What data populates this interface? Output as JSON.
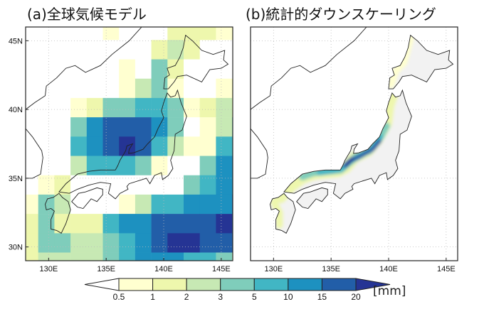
{
  "panels": [
    {
      "title": "(a)全球気候モデル"
    },
    {
      "title": "(b)統計的ダウンスケーリング"
    }
  ],
  "lon_ticks": [
    "130E",
    "135E",
    "140E",
    "145E"
  ],
  "lat_ticks": [
    "45N",
    "40N",
    "35N",
    "30N"
  ],
  "colorbar": {
    "boundaries": [
      "0.5",
      "1",
      "2",
      "3",
      "5",
      "10",
      "15",
      "20"
    ],
    "unit": "[mm]",
    "colors": [
      "#ffffff",
      "#ffffd0",
      "#eef7ad",
      "#c7e9b4",
      "#7fcdbb",
      "#41b6c4",
      "#1d91c0",
      "#225ea8",
      "#253494"
    ]
  },
  "chart_data": {
    "type": "heatmap",
    "xlim": [
      128,
      146
    ],
    "ylim": [
      29,
      46
    ],
    "grid_note_levels": "category index 0=<0.5, 1=0.5-1, 2=1-2, 3=2-3, 4=3-5, 5=5-10, 6=10-15, 7=15-20, 8=>20",
    "gcm_grid": [
      [
        0,
        0,
        0,
        0,
        0,
        1,
        0,
        0,
        0,
        2,
        2,
        2,
        1,
        2
      ],
      [
        0,
        0,
        0,
        0,
        0,
        0,
        0,
        0,
        2,
        3,
        2,
        0,
        0,
        0
      ],
      [
        0,
        0,
        0,
        0,
        0,
        0,
        1,
        0,
        4,
        2,
        0,
        0,
        0,
        0
      ],
      [
        0,
        0,
        0,
        0,
        0,
        0,
        1,
        3,
        4,
        1,
        0,
        0,
        1,
        2
      ],
      [
        0,
        0,
        0,
        1,
        2,
        4,
        4,
        5,
        5,
        4,
        1,
        2,
        3,
        2
      ],
      [
        0,
        0,
        0,
        4,
        6,
        7,
        7,
        7,
        6,
        4,
        0,
        1,
        3,
        4
      ],
      [
        0,
        0,
        0,
        5,
        6,
        7,
        8,
        7,
        5,
        3,
        1,
        1,
        5,
        5
      ],
      [
        0,
        0,
        0,
        3,
        5,
        5,
        5,
        4,
        1,
        0,
        0,
        4,
        6,
        6
      ],
      [
        0,
        1,
        2,
        0,
        0,
        0,
        0,
        0,
        0,
        0,
        4,
        5,
        6,
        6
      ],
      [
        1,
        4,
        3,
        0,
        0,
        0,
        1,
        3,
        5,
        5,
        6,
        6,
        6,
        7
      ],
      [
        2,
        4,
        2,
        2,
        2,
        5,
        6,
        6,
        7,
        7,
        7,
        7,
        8,
        7
      ],
      [
        2,
        4,
        4,
        3,
        3,
        4,
        5,
        6,
        7,
        8,
        8,
        7,
        7,
        7
      ],
      [
        2,
        3,
        3,
        3,
        3,
        4,
        5,
        6,
        6,
        6,
        5,
        5,
        4,
        3
      ]
    ]
  }
}
